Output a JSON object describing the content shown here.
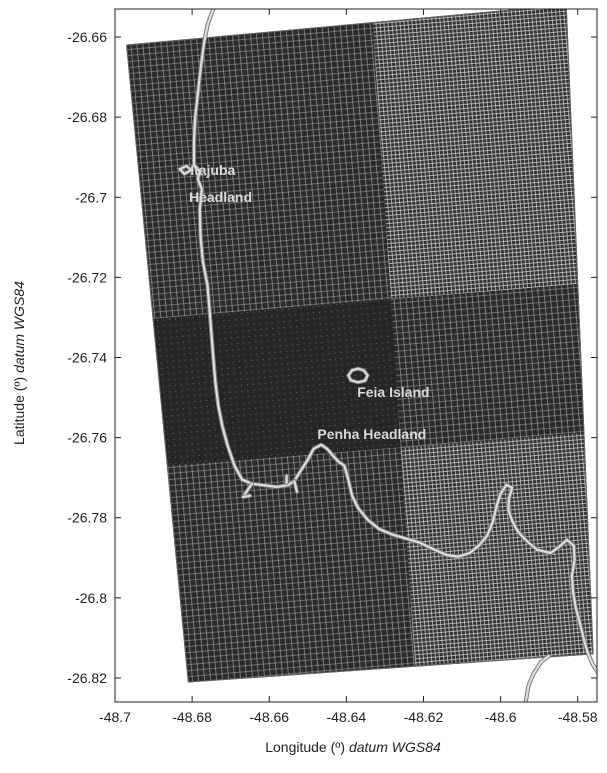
{
  "chart_data": {
    "type": "map",
    "xlabel": "Longitude (º)",
    "xlabel_datum": "datum WGS84",
    "ylabel": "Latitude (º)",
    "ylabel_datum": "datum WGS84",
    "xlim": [
      -48.7,
      -48.575
    ],
    "ylim": [
      -26.826,
      -26.653
    ],
    "x_ticks": [
      -48.7,
      -48.68,
      -48.66,
      -48.64,
      -48.62,
      -48.6,
      -48.58
    ],
    "x_tick_labels": [
      "-48.7",
      "-48.68",
      "-48.66",
      "-48.64",
      "-48.62",
      "-48.6",
      "-48.58"
    ],
    "y_ticks": [
      -26.66,
      -26.68,
      -26.7,
      -26.72,
      -26.74,
      -26.76,
      -26.78,
      -26.8,
      -26.82
    ],
    "y_tick_labels": [
      "-26.66",
      "-26.68",
      "-26.7",
      "-26.72",
      "-26.74",
      "-26.76",
      "-26.78",
      "-26.8",
      "-26.82"
    ],
    "grid_domain_corners": [
      [
        -48.697,
        -26.662
      ],
      [
        -48.583,
        -26.652
      ],
      [
        -48.576,
        -26.814
      ],
      [
        -48.681,
        -26.821
      ]
    ],
    "labels": [
      {
        "text": "Itajuba",
        "lon": -48.6805,
        "lat": -26.6944
      },
      {
        "text": "Headland",
        "lon": -48.6808,
        "lat": -26.7012
      },
      {
        "text": "Feia Island",
        "lon": -48.6372,
        "lat": -26.7499
      },
      {
        "text": "Penha Headland",
        "lon": -48.6475,
        "lat": -26.7603
      }
    ],
    "coastline": [
      [
        -48.6745,
        -26.653
      ],
      [
        -48.676,
        -26.657
      ],
      [
        -48.677,
        -26.662
      ],
      [
        -48.6778,
        -26.668
      ],
      [
        -48.6785,
        -26.674
      ],
      [
        -48.6792,
        -26.68
      ],
      [
        -48.6795,
        -26.686
      ],
      [
        -48.6795,
        -26.692
      ],
      [
        -48.678,
        -26.6935
      ],
      [
        -48.6785,
        -26.6955
      ],
      [
        -48.6775,
        -26.698
      ],
      [
        -48.678,
        -26.703
      ],
      [
        -48.6778,
        -26.71
      ],
      [
        -48.6772,
        -26.716
      ],
      [
        -48.676,
        -26.722
      ],
      [
        -48.6755,
        -26.728
      ],
      [
        -48.675,
        -26.734
      ],
      [
        -48.6745,
        -26.74
      ],
      [
        -48.674,
        -26.746
      ],
      [
        -48.6732,
        -26.752
      ],
      [
        -48.6722,
        -26.757
      ],
      [
        -48.6708,
        -26.762
      ],
      [
        -48.669,
        -26.767
      ],
      [
        -48.667,
        -26.7705
      ],
      [
        -48.6645,
        -26.7715
      ],
      [
        -48.6605,
        -26.772
      ],
      [
        -48.658,
        -26.7723
      ],
      [
        -48.655,
        -26.7718
      ],
      [
        -48.6535,
        -26.7708
      ],
      [
        -48.652,
        -26.7685
      ],
      [
        -48.65,
        -26.7655
      ],
      [
        -48.6485,
        -26.7628
      ],
      [
        -48.6465,
        -26.7618
      ],
      [
        -48.645,
        -26.7628
      ],
      [
        -48.6435,
        -26.7645
      ],
      [
        -48.642,
        -26.766
      ],
      [
        -48.6405,
        -26.767
      ],
      [
        -48.6395,
        -26.7705
      ],
      [
        -48.6385,
        -26.7745
      ],
      [
        -48.637,
        -26.7775
      ],
      [
        -48.6345,
        -26.7805
      ],
      [
        -48.6315,
        -26.7828
      ],
      [
        -48.628,
        -26.7842
      ],
      [
        -48.6245,
        -26.7852
      ],
      [
        -48.621,
        -26.7862
      ],
      [
        -48.6175,
        -26.7878
      ],
      [
        -48.614,
        -26.7893
      ],
      [
        -48.611,
        -26.7897
      ],
      [
        -48.608,
        -26.7888
      ],
      [
        -48.6055,
        -26.7868
      ],
      [
        -48.6035,
        -26.7845
      ],
      [
        -48.602,
        -26.781
      ],
      [
        -48.601,
        -26.777
      ],
      [
        -48.6,
        -26.774
      ],
      [
        -48.5985,
        -26.7718
      ],
      [
        -48.597,
        -26.7725
      ],
      [
        -48.5978,
        -26.775
      ],
      [
        -48.598,
        -26.778
      ],
      [
        -48.597,
        -26.7808
      ],
      [
        -48.5955,
        -26.7835
      ],
      [
        -48.593,
        -26.786
      ],
      [
        -48.5905,
        -26.788
      ],
      [
        -48.587,
        -26.7888
      ],
      [
        -48.5845,
        -26.787
      ],
      [
        -48.5828,
        -26.7855
      ],
      [
        -48.581,
        -26.787
      ],
      [
        -48.5808,
        -26.7905
      ],
      [
        -48.5815,
        -26.7945
      ],
      [
        -48.5812,
        -26.7985
      ],
      [
        -48.5805,
        -26.8025
      ],
      [
        -48.5795,
        -26.806
      ],
      [
        -48.5785,
        -26.81
      ],
      [
        -48.5775,
        -26.8135
      ],
      [
        -48.5762,
        -26.8165
      ],
      [
        -48.5745,
        -26.819
      ]
    ],
    "coastline_south": [
      [
        -48.5875,
        -26.8145
      ],
      [
        -48.5895,
        -26.816
      ],
      [
        -48.5915,
        -26.819
      ],
      [
        -48.5928,
        -26.822
      ],
      [
        -48.5935,
        -26.826
      ]
    ],
    "islands": [
      {
        "name": "Feia Island",
        "outline": [
          [
            -48.6395,
            -26.7445
          ],
          [
            -48.6385,
            -26.7432
          ],
          [
            -48.637,
            -26.7428
          ],
          [
            -48.6355,
            -26.7432
          ],
          [
            -48.6345,
            -26.7445
          ],
          [
            -48.6352,
            -26.7458
          ],
          [
            -48.637,
            -26.7462
          ],
          [
            -48.6388,
            -26.7457
          ],
          [
            -48.6395,
            -26.7445
          ]
        ]
      },
      {
        "name": "",
        "outline": [
          [
            -48.6832,
            -26.693
          ],
          [
            -48.6815,
            -26.6922
          ],
          [
            -48.6802,
            -26.6932
          ],
          [
            -48.682,
            -26.6942
          ],
          [
            -48.6832,
            -26.693
          ]
        ]
      }
    ],
    "breakwaters": [
      [
        [
          -48.6535,
          -26.7708
        ],
        [
          -48.6528,
          -26.7735
        ]
      ],
      [
        [
          -48.6555,
          -26.7713
        ],
        [
          -48.6555,
          -26.7695
        ]
      ],
      [
        [
          -48.6645,
          -26.7715
        ],
        [
          -48.6668,
          -26.7748
        ]
      ],
      [
        [
          -48.6668,
          -26.7748
        ],
        [
          -48.665,
          -26.7745
        ]
      ]
    ]
  }
}
